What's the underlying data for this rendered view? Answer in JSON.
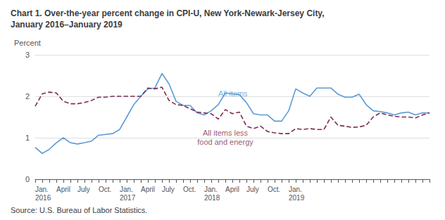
{
  "chart_data": {
    "type": "line",
    "title": "Chart 1. Over-the-year percent change in CPI-U, New York-Newark-Jersey City,\nJanuary 2016–January 2019",
    "ylabel": "Percent",
    "source": "Source: U.S. Bureau of Labor Statistics.",
    "categories": [
      "Jan.\n2016",
      null,
      null,
      "April",
      null,
      null,
      "July",
      null,
      null,
      "Oct.",
      null,
      null,
      "Jan.\n2017",
      null,
      null,
      "April",
      null,
      null,
      "July",
      null,
      null,
      "Oct.",
      null,
      null,
      "Jan.\n2018",
      null,
      null,
      "April",
      null,
      null,
      "July",
      null,
      null,
      "Oct.",
      null,
      null,
      "Jan.\n2019",
      null,
      null,
      null,
      null,
      null,
      null,
      null,
      null,
      null,
      null,
      null,
      null,
      null,
      null,
      null,
      null,
      null,
      null,
      null,
      null
    ],
    "series": [
      {
        "name": "All items",
        "color": "#5b9bd5",
        "line_style": "solid",
        "values": [
          0.77,
          0.62,
          0.72,
          0.88,
          1.0,
          0.88,
          0.85,
          0.88,
          0.92,
          1.06,
          1.08,
          1.1,
          1.2,
          1.5,
          1.8,
          2.0,
          2.18,
          2.2,
          2.55,
          2.3,
          1.88,
          1.78,
          1.78,
          1.6,
          1.55,
          1.65,
          1.8,
          2.08,
          2.06,
          2.04,
          1.85,
          1.58,
          1.55,
          1.55,
          1.4,
          1.4,
          1.65,
          2.18,
          2.08,
          2.0,
          2.2,
          2.2,
          2.2,
          2.05,
          1.98,
          1.98,
          2.05,
          1.8,
          1.65,
          1.63,
          1.6,
          1.55,
          1.6,
          1.62,
          1.55,
          1.6,
          1.6
        ]
      },
      {
        "name": "All items less food and energy",
        "color": "#7b2d52",
        "line_style": "dashed",
        "values": [
          1.76,
          2.06,
          2.1,
          2.08,
          1.88,
          1.82,
          1.82,
          1.85,
          1.9,
          1.98,
          1.98,
          2.0,
          2.0,
          2.0,
          2.0,
          2.0,
          2.2,
          2.18,
          2.22,
          1.9,
          1.8,
          1.78,
          1.7,
          1.62,
          1.6,
          1.58,
          1.45,
          1.68,
          1.58,
          1.62,
          1.28,
          1.22,
          1.28,
          1.15,
          1.12,
          1.1,
          1.1,
          1.22,
          1.2,
          1.22,
          1.2,
          1.2,
          1.5,
          1.3,
          1.28,
          1.25,
          1.26,
          1.3,
          1.5,
          1.6,
          1.55,
          1.52,
          1.5,
          1.5,
          1.48,
          1.55,
          1.6
        ]
      }
    ],
    "annotations": [
      {
        "text": "All items",
        "x": 26,
        "y": 1.95,
        "color": "#5b9bd5"
      },
      {
        "text": "All items less\nfood and energy",
        "x": 27,
        "y": 0.78,
        "color": "#7b2d52"
      }
    ],
    "ylim": [
      0,
      3
    ],
    "yticks": [
      0,
      1,
      2,
      3
    ],
    "grid": true
  }
}
